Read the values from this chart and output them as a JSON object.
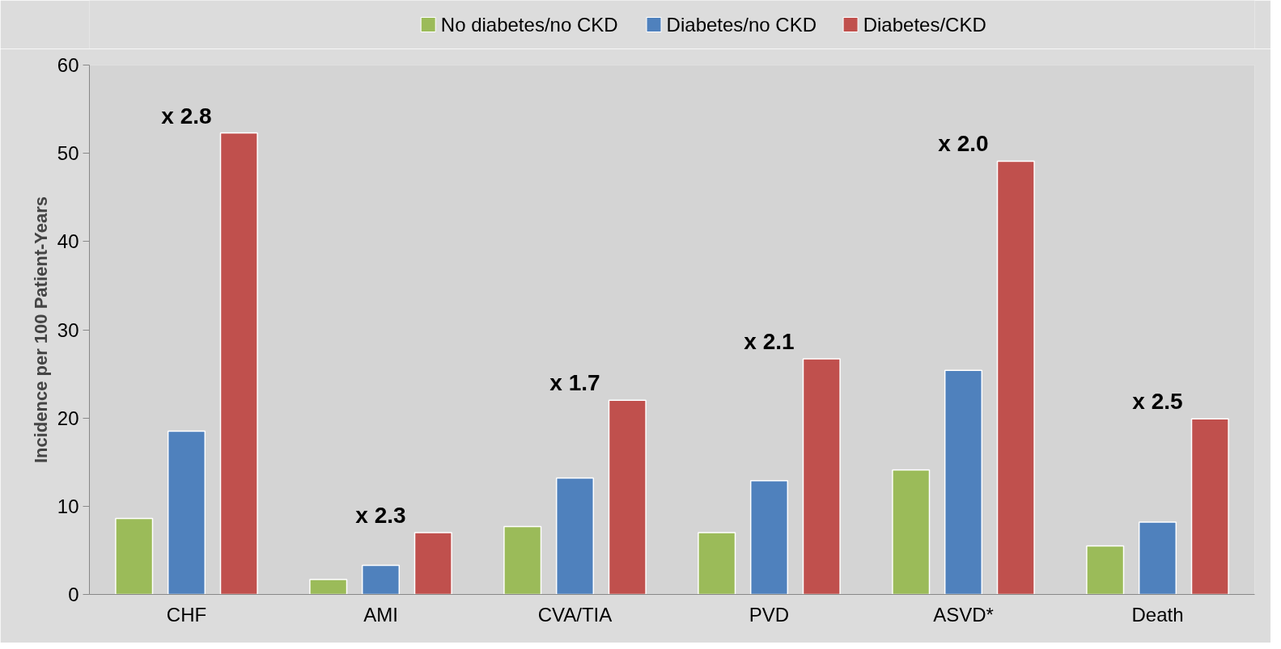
{
  "chart_data": {
    "type": "bar",
    "ylabel": "Incidence per 100 Patient-Years",
    "categories": [
      "CHF",
      "AMI",
      "CVA/TIA",
      "PVD",
      "ASVD*",
      "Death"
    ],
    "series": [
      {
        "name": "No diabetes/no CKD",
        "color": "#9bbb59",
        "values": [
          8.6,
          1.7,
          7.7,
          7.0,
          14.1,
          5.5
        ]
      },
      {
        "name": "Diabetes/no CKD",
        "color": "#4f81bd",
        "values": [
          18.5,
          3.3,
          13.2,
          12.9,
          25.4,
          8.2
        ]
      },
      {
        "name": "Diabetes/CKD",
        "color": "#c0504d",
        "values": [
          52.3,
          7.0,
          22.0,
          26.7,
          49.1,
          19.9
        ]
      }
    ],
    "annotations": [
      "x 2.8",
      "x 2.3",
      "x 1.7",
      "x 2.1",
      "x 2.0",
      "x 2.5"
    ],
    "ylim": [
      0,
      60
    ],
    "yticks": [
      0,
      10,
      20,
      30,
      40,
      50,
      60
    ],
    "grid": false,
    "legend": "top"
  }
}
